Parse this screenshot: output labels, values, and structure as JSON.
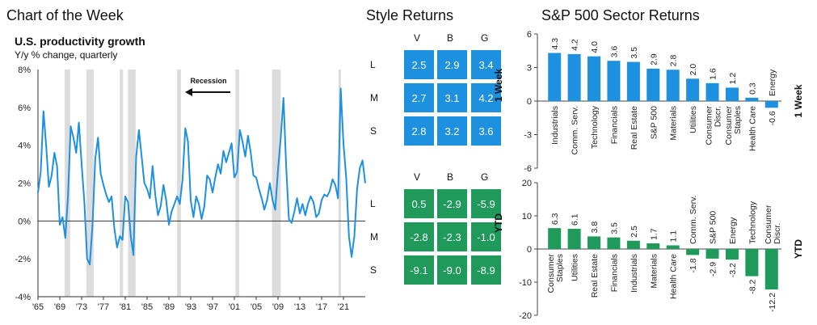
{
  "headings": {
    "chart_of_week": "Chart of the Week",
    "style_returns": "Style Returns",
    "sector_returns": "S&P 500 Sector Returns"
  },
  "productivity": {
    "title": "U.S. productivity growth",
    "subtitle": "Y/y % change, quarterly",
    "recession_label": "Recession"
  },
  "chart_data": [
    {
      "type": "line",
      "title": "U.S. productivity growth",
      "subtitle": "Y/y % change, quarterly",
      "ylim": [
        -4,
        8
      ],
      "y_ticks": [
        "8%",
        "6%",
        "4%",
        "2%",
        "0%",
        "-2%",
        "-4%"
      ],
      "x_tick_labels": [
        "'65",
        "'69",
        "'73",
        "'77",
        "'81",
        "'85",
        "'89",
        "'93",
        "'97",
        "'01",
        "'05",
        "'09",
        "'13",
        "'17",
        "'21"
      ],
      "x_tick_years": [
        1965,
        1969,
        1973,
        1977,
        1981,
        1985,
        1989,
        1993,
        1997,
        2001,
        2005,
        2009,
        2013,
        2017,
        2021
      ],
      "xlim": [
        1965,
        2025
      ],
      "recessions": [
        [
          1969.9,
          1970.9
        ],
        [
          1973.9,
          1975.2
        ],
        [
          1980.0,
          1980.6
        ],
        [
          1981.5,
          1982.9
        ],
        [
          1990.5,
          1991.2
        ],
        [
          2001.2,
          2001.9
        ],
        [
          2007.9,
          2009.5
        ],
        [
          2020.1,
          2020.4
        ]
      ],
      "series": [
        {
          "color": "#1e90e0",
          "points": [
            [
              1965.0,
              1.5
            ],
            [
              1965.5,
              2.6
            ],
            [
              1966.0,
              5.8
            ],
            [
              1966.5,
              4.0
            ],
            [
              1967.0,
              1.8
            ],
            [
              1967.5,
              2.4
            ],
            [
              1968.0,
              3.6
            ],
            [
              1968.5,
              2.9
            ],
            [
              1969.0,
              -0.2
            ],
            [
              1969.5,
              0.2
            ],
            [
              1970.0,
              -0.9
            ],
            [
              1970.5,
              1.3
            ],
            [
              1971.0,
              5.0
            ],
            [
              1971.5,
              4.4
            ],
            [
              1972.0,
              3.6
            ],
            [
              1972.5,
              5.2
            ],
            [
              1973.0,
              3.0
            ],
            [
              1973.5,
              1.0
            ],
            [
              1974.0,
              -2.0
            ],
            [
              1974.5,
              -2.3
            ],
            [
              1975.0,
              -0.2
            ],
            [
              1975.5,
              3.3
            ],
            [
              1976.0,
              4.4
            ],
            [
              1976.5,
              2.5
            ],
            [
              1977.0,
              1.9
            ],
            [
              1977.5,
              1.4
            ],
            [
              1978.0,
              1.0
            ],
            [
              1978.5,
              1.3
            ],
            [
              1979.0,
              -0.4
            ],
            [
              1979.5,
              -1.4
            ],
            [
              1980.0,
              -0.8
            ],
            [
              1980.5,
              -1.0
            ],
            [
              1981.0,
              1.3
            ],
            [
              1981.5,
              1.0
            ],
            [
              1982.0,
              -0.8
            ],
            [
              1982.5,
              -1.8
            ],
            [
              1983.0,
              3.4
            ],
            [
              1983.5,
              4.8
            ],
            [
              1984.0,
              3.4
            ],
            [
              1984.5,
              2.0
            ],
            [
              1985.0,
              1.7
            ],
            [
              1985.5,
              1.2
            ],
            [
              1986.0,
              2.9
            ],
            [
              1986.5,
              1.4
            ],
            [
              1987.0,
              0.3
            ],
            [
              1987.5,
              0.8
            ],
            [
              1988.0,
              1.9
            ],
            [
              1988.5,
              1.1
            ],
            [
              1989.0,
              -0.2
            ],
            [
              1989.5,
              0.5
            ],
            [
              1990.0,
              0.9
            ],
            [
              1990.5,
              1.3
            ],
            [
              1991.0,
              0.9
            ],
            [
              1991.5,
              2.2
            ],
            [
              1992.0,
              4.9
            ],
            [
              1992.5,
              4.2
            ],
            [
              1993.0,
              1.1
            ],
            [
              1993.5,
              0.2
            ],
            [
              1994.0,
              1.3
            ],
            [
              1994.5,
              0.9
            ],
            [
              1995.0,
              0.1
            ],
            [
              1995.5,
              0.8
            ],
            [
              1996.0,
              2.4
            ],
            [
              1996.5,
              2.2
            ],
            [
              1997.0,
              1.5
            ],
            [
              1997.5,
              2.3
            ],
            [
              1998.0,
              3.0
            ],
            [
              1998.5,
              2.5
            ],
            [
              1999.0,
              3.7
            ],
            [
              1999.5,
              3.1
            ],
            [
              2000.0,
              3.6
            ],
            [
              2000.5,
              4.1
            ],
            [
              2001.0,
              2.3
            ],
            [
              2001.5,
              2.6
            ],
            [
              2002.0,
              4.8
            ],
            [
              2002.5,
              4.2
            ],
            [
              2003.0,
              3.4
            ],
            [
              2003.5,
              4.5
            ],
            [
              2004.0,
              3.6
            ],
            [
              2004.5,
              2.4
            ],
            [
              2005.0,
              2.3
            ],
            [
              2005.5,
              1.7
            ],
            [
              2006.0,
              1.2
            ],
            [
              2006.5,
              0.6
            ],
            [
              2007.0,
              1.1
            ],
            [
              2007.5,
              2.0
            ],
            [
              2008.0,
              1.1
            ],
            [
              2008.5,
              0.6
            ],
            [
              2009.0,
              2.7
            ],
            [
              2009.5,
              4.4
            ],
            [
              2010.0,
              6.5
            ],
            [
              2010.5,
              2.9
            ],
            [
              2011.0,
              0.1
            ],
            [
              2011.5,
              -0.1
            ],
            [
              2012.0,
              0.5
            ],
            [
              2012.5,
              1.2
            ],
            [
              2013.0,
              0.4
            ],
            [
              2013.5,
              0.9
            ],
            [
              2014.0,
              0.3
            ],
            [
              2014.5,
              0.9
            ],
            [
              2015.0,
              1.3
            ],
            [
              2015.5,
              1.0
            ],
            [
              2016.0,
              0.2
            ],
            [
              2016.5,
              0.4
            ],
            [
              2017.0,
              1.1
            ],
            [
              2017.5,
              1.4
            ],
            [
              2018.0,
              1.3
            ],
            [
              2018.5,
              1.6
            ],
            [
              2019.0,
              2.2
            ],
            [
              2019.5,
              1.9
            ],
            [
              2020.0,
              1.2
            ],
            [
              2020.5,
              7.0
            ],
            [
              2021.0,
              4.1
            ],
            [
              2021.5,
              2.3
            ],
            [
              2022.0,
              -0.8
            ],
            [
              2022.5,
              -1.9
            ],
            [
              2023.0,
              -0.8
            ],
            [
              2023.5,
              1.7
            ],
            [
              2024.0,
              2.8
            ],
            [
              2024.5,
              3.2
            ],
            [
              2025.0,
              2.0
            ]
          ]
        }
      ]
    },
    {
      "type": "bar",
      "group": "1 Week",
      "ylim": [
        -6,
        6
      ],
      "y_ticks": [
        6,
        3,
        0,
        -3,
        -6
      ],
      "categories": [
        "Industrials",
        "Comm. Serv.",
        "Technology",
        "Financials",
        "Real Estate",
        "S&P 500",
        "Materials",
        "Utilities",
        "Consumer Discr.",
        "Consumer Staples",
        "Health Care",
        "Energy"
      ],
      "values": [
        4.3,
        4.2,
        4.0,
        3.6,
        3.5,
        2.9,
        2.8,
        2.0,
        1.6,
        1.2,
        0.3,
        -0.6
      ],
      "value_labels": [
        "4.3",
        "4.2",
        "4.0",
        "3.6",
        "3.5",
        "2.9",
        "2.8",
        "2.0",
        "1.6",
        "1.2",
        "0.3",
        "-0.6"
      ],
      "color": "#1e90e0"
    },
    {
      "type": "bar",
      "group": "YTD",
      "ylim": [
        -20,
        20
      ],
      "y_ticks": [
        20,
        10,
        0,
        -10,
        -20
      ],
      "categories": [
        "Consumer Staples",
        "Utilities",
        "Real Estate",
        "Financials",
        "Industrials",
        "Materials",
        "Health Care",
        "Comm. Serv.",
        "S&P 500",
        "Energy",
        "Technology",
        "Consumer Discr."
      ],
      "values": [
        6.3,
        6.1,
        3.8,
        3.5,
        2.5,
        1.7,
        1.1,
        -1.8,
        -2.9,
        -3.2,
        -8.2,
        -12.2
      ],
      "value_labels": [
        "6.3",
        "6.1",
        "3.8",
        "3.5",
        "2.5",
        "1.7",
        "1.1",
        "-1.8",
        "-2.9",
        "-3.2",
        "-8.2",
        "-12.2"
      ],
      "color": "#1f9a5a"
    },
    {
      "type": "table",
      "group": "1 Week",
      "columns": [
        "V",
        "B",
        "G"
      ],
      "rows": [
        "L",
        "M",
        "S"
      ],
      "cells": [
        [
          "2.5",
          "2.9",
          "3.4"
        ],
        [
          "2.7",
          "3.1",
          "4.2"
        ],
        [
          "2.8",
          "3.2",
          "3.6"
        ]
      ],
      "color": "#1e90e0"
    },
    {
      "type": "table",
      "group": "YTD",
      "columns": [
        "V",
        "B",
        "G"
      ],
      "rows": [
        "L",
        "M",
        "S"
      ],
      "cells": [
        [
          "0.5",
          "-2.9",
          "-5.9"
        ],
        [
          "-2.8",
          "-2.3",
          "-1.0"
        ],
        [
          "-9.1",
          "-9.0",
          "-8.9"
        ]
      ],
      "color": "#1f9a5a"
    }
  ]
}
